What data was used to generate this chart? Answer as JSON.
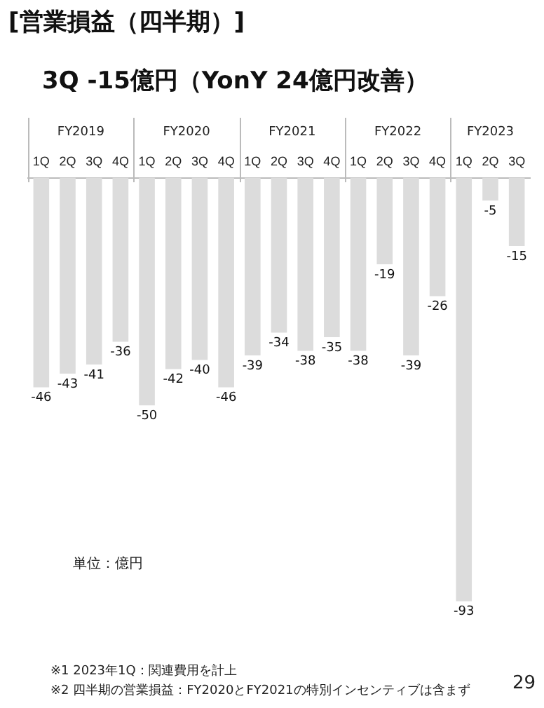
{
  "chart_data": {
    "type": "bar",
    "title": "[営業損益（四半期）]",
    "subtitle": "3Q -15億円（YonY 24億円改善）",
    "categories": [
      "1Q",
      "2Q",
      "3Q",
      "4Q",
      "1Q",
      "2Q",
      "3Q",
      "4Q",
      "1Q",
      "2Q",
      "3Q",
      "4Q",
      "1Q",
      "2Q",
      "3Q",
      "4Q",
      "1Q",
      "2Q",
      "3Q"
    ],
    "values": [
      -46,
      -43,
      -41,
      -36,
      -50,
      -42,
      -40,
      -46,
      -39,
      -34,
      -38,
      -35,
      -38,
      -19,
      -39,
      -26,
      -93,
      -5,
      -15
    ],
    "color": "#dcdcdc",
    "data_labels": true,
    "grid": false,
    "legend": false,
    "annotations": [
      "FY2019",
      "FY2020",
      "FY2021",
      "FY2022",
      "FY2023",
      "単位：億円",
      "※1 2023年1Q：関連費用を計上",
      "※2 四半期の営業損益：FY2020とFY2021の特別インセンティブは含まず",
      "29"
    ]
  }
}
